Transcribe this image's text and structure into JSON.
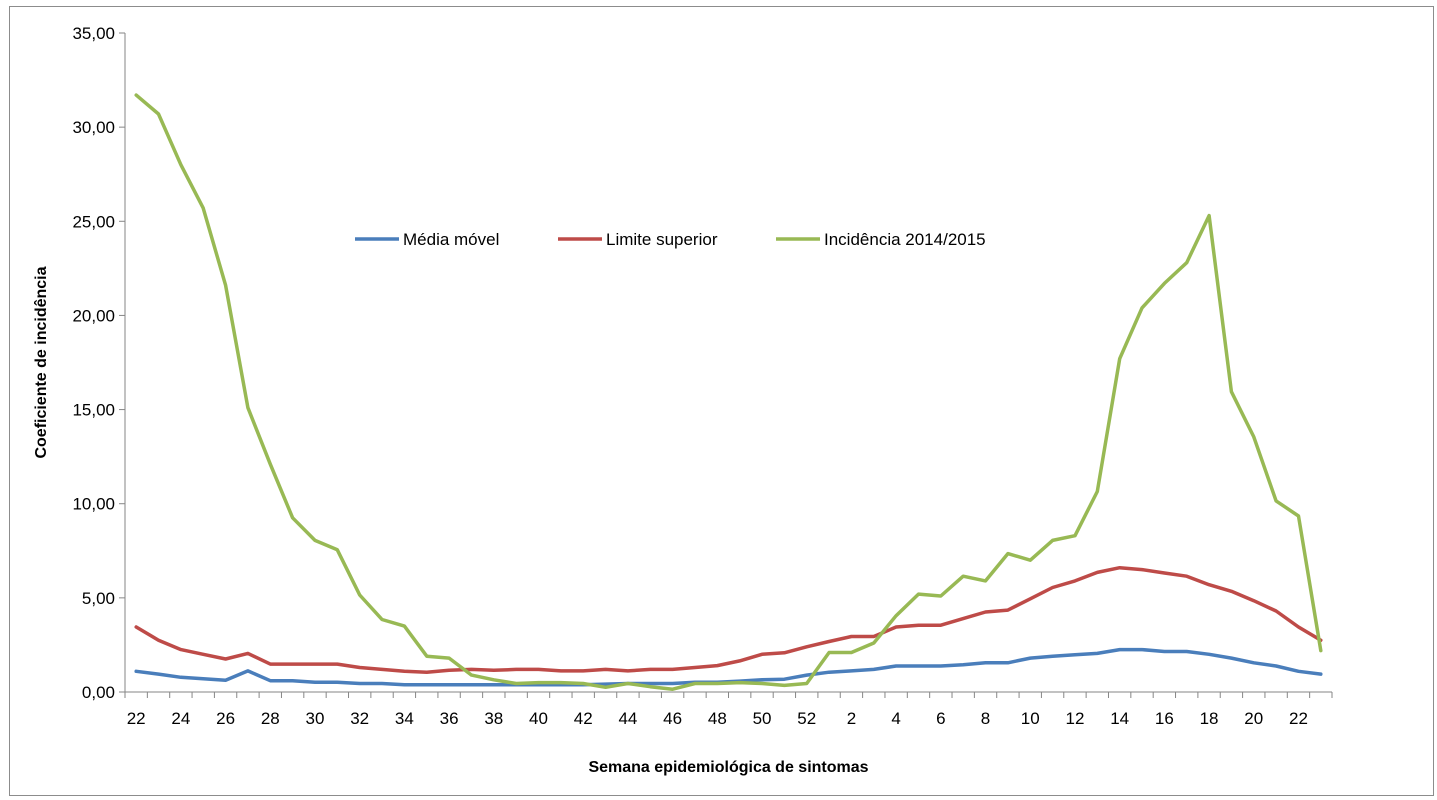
{
  "chart_data": {
    "type": "line",
    "title": "",
    "xlabel": "Semana epidemiológica  de sintomas",
    "ylabel": "Coeficiente de incidência",
    "ylim": [
      0,
      35
    ],
    "y_ticks": [
      "0,00",
      "5,00",
      "10,00",
      "15,00",
      "20,00",
      "25,00",
      "30,00",
      "35,00"
    ],
    "x": [
      22,
      23,
      24,
      25,
      26,
      27,
      28,
      29,
      30,
      31,
      32,
      33,
      34,
      35,
      36,
      37,
      38,
      39,
      40,
      41,
      42,
      43,
      44,
      45,
      46,
      47,
      48,
      49,
      50,
      51,
      52,
      1,
      2,
      3,
      4,
      5,
      6,
      7,
      8,
      9,
      10,
      11,
      12,
      13,
      14,
      15,
      16,
      17,
      18,
      19,
      20,
      21,
      22,
      23
    ],
    "x_tick_labels": [
      "22",
      "24",
      "26",
      "28",
      "30",
      "32",
      "34",
      "36",
      "38",
      "40",
      "42",
      "44",
      "46",
      "48",
      "50",
      "52",
      "2",
      "4",
      "6",
      "8",
      "10",
      "12",
      "14",
      "16",
      "18",
      "20",
      "22"
    ],
    "grid": false,
    "legend_position": "top-center",
    "series": [
      {
        "name": "Média móvel",
        "color": "#4a7ebb",
        "values": [
          1.1,
          0.95,
          0.78,
          0.7,
          0.62,
          1.12,
          0.6,
          0.6,
          0.52,
          0.52,
          0.45,
          0.45,
          0.38,
          0.38,
          0.38,
          0.38,
          0.38,
          0.38,
          0.38,
          0.38,
          0.38,
          0.42,
          0.45,
          0.45,
          0.45,
          0.52,
          0.52,
          0.58,
          0.65,
          0.68,
          0.9,
          1.05,
          1.12,
          1.2,
          1.38,
          1.38,
          1.38,
          1.45,
          1.55,
          1.55,
          1.8,
          1.9,
          1.98,
          2.05,
          2.25,
          2.25,
          2.15,
          2.15,
          2.0,
          1.8,
          1.55,
          1.38,
          1.1,
          0.95
        ]
      },
      {
        "name": "Limite superior",
        "color": "#be4b48",
        "values": [
          3.45,
          2.75,
          2.25,
          2.0,
          1.75,
          2.05,
          1.48,
          1.48,
          1.48,
          1.48,
          1.3,
          1.2,
          1.1,
          1.05,
          1.15,
          1.2,
          1.15,
          1.2,
          1.2,
          1.12,
          1.12,
          1.2,
          1.12,
          1.2,
          1.2,
          1.3,
          1.4,
          1.65,
          2.0,
          2.08,
          2.4,
          2.68,
          2.95,
          2.95,
          3.45,
          3.55,
          3.55,
          3.9,
          4.25,
          4.35,
          4.95,
          5.55,
          5.9,
          6.35,
          6.6,
          6.5,
          6.32,
          6.15,
          5.7,
          5.35,
          4.85,
          4.3,
          3.45,
          2.75
        ]
      },
      {
        "name": "Incidência 2014/2015",
        "color": "#98b954",
        "values": [
          31.7,
          30.7,
          28.0,
          25.7,
          21.6,
          15.1,
          12.1,
          9.25,
          8.05,
          7.55,
          5.15,
          3.85,
          3.5,
          1.9,
          1.8,
          0.9,
          0.65,
          0.45,
          0.5,
          0.5,
          0.45,
          0.25,
          0.45,
          0.28,
          0.15,
          0.45,
          0.45,
          0.5,
          0.45,
          0.35,
          0.45,
          2.1,
          2.1,
          2.6,
          4.05,
          5.2,
          5.1,
          6.15,
          5.9,
          7.35,
          7.0,
          8.05,
          8.3,
          10.65,
          17.7,
          20.4,
          21.7,
          22.8,
          25.3,
          15.95,
          13.55,
          10.15,
          9.35,
          2.2
        ]
      }
    ]
  }
}
